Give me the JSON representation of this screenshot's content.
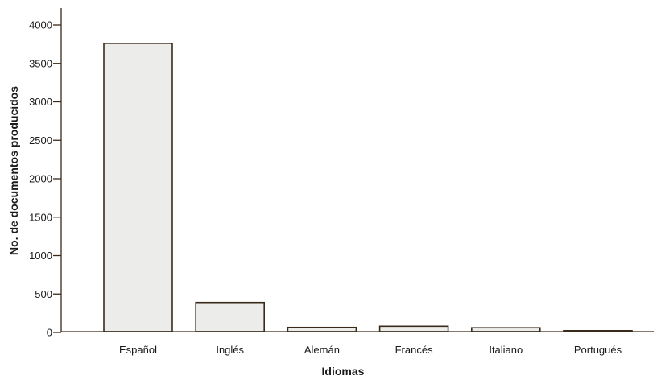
{
  "chart_data": {
    "type": "bar",
    "categories": [
      "Español",
      "Inglés",
      "Alemán",
      "Francés",
      "Italiano",
      "Portugués"
    ],
    "values": [
      3750,
      380,
      55,
      70,
      50,
      5
    ],
    "title": "",
    "xlabel": "Idiomas",
    "ylabel": "No. de documentos producidos",
    "ylim": [
      0,
      4000
    ],
    "yticks": [
      0,
      500,
      1000,
      1500,
      2000,
      2500,
      3000,
      3500,
      4000
    ],
    "grid": false,
    "colors": {
      "bar_fill": "#ececea",
      "bar_stroke": "#3a2a1a"
    }
  }
}
